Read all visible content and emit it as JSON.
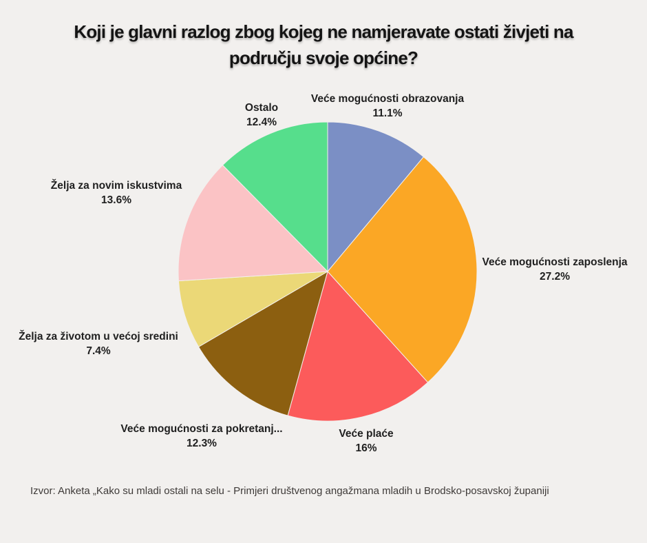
{
  "page": {
    "background_color": "#F2F0EE"
  },
  "title": {
    "line1": "Koji je glavni razlog zbog kojeg ne namjeravate ostati živjeti na",
    "line2": "području svoje općine?"
  },
  "source": "Izvor: Anketa „Kako su mladi ostali na selu - Primjeri društvenog angažmana mladih u Brodsko-posavskoj županiji",
  "chart_data": {
    "type": "pie",
    "title": "Koji je glavni razlog zbog kojeg ne namjeravate ostati živjeti na području svoje općine?",
    "start_angle_deg": -90,
    "direction": "clockwise",
    "legend_position": "outside-labels",
    "slices": [
      {
        "label": "Veće mogućnosti obrazovanja",
        "pct_label": "11.1%",
        "value": 11.1,
        "color": "#7B8FC5"
      },
      {
        "label": "Veće mogućnosti zaposlenja",
        "pct_label": "27.2%",
        "value": 27.2,
        "color": "#FBA725"
      },
      {
        "label": "Veće plaće",
        "pct_label": "16%",
        "value": 16.0,
        "color": "#FC5B5B"
      },
      {
        "label": "Veće mogućnosti za pokretanj...",
        "pct_label": "12.3%",
        "value": 12.3,
        "color": "#8C5F10"
      },
      {
        "label": "Želja za životom u većoj sredini",
        "pct_label": "7.4%",
        "value": 7.4,
        "color": "#EBD877"
      },
      {
        "label": "Želja za novim iskustvima",
        "pct_label": "13.6%",
        "value": 13.6,
        "color": "#FBC3C5"
      },
      {
        "label": "Ostalo",
        "pct_label": "12.4%",
        "value": 12.4,
        "color": "#56DE8C"
      }
    ]
  }
}
